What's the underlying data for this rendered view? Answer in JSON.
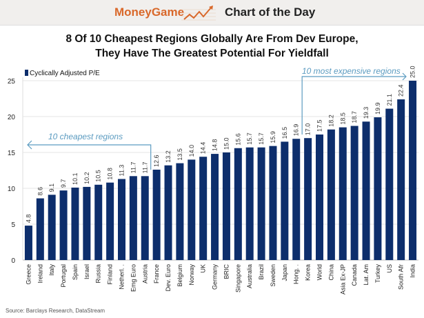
{
  "header": {
    "brand": "MoneyGame",
    "section": "Chart of the Day"
  },
  "source": "Source: Barclays Research, DataStream",
  "colors": {
    "bar": "#0d2e6c",
    "annotation": "#5b9bc0",
    "brand": "#d9682a"
  },
  "chart_data": {
    "type": "bar",
    "title_line1": "8 Of 10 Cheapest Regions Globally Are From Dev Europe,",
    "title_line2": "They Have The Greatest Potential For Yieldfall",
    "legend": "Cyclically Adjusted P/E",
    "ylim": [
      0,
      25
    ],
    "yticks": [
      "0",
      "5",
      "10",
      "15",
      "20",
      "25"
    ],
    "grid": true,
    "categories": [
      "Greece",
      "Ireland",
      "Italy",
      "Portugal",
      "Spain",
      "Israel",
      "Russia",
      "Finland",
      "Netherl. .",
      "Emg Euro",
      "Austria",
      "France",
      "Dev. Euro",
      "Belgium",
      "Norway",
      "UK",
      "Germany",
      "BRIC",
      "Singapore",
      "Australia",
      "Brazil",
      "Sweden",
      "Japan",
      "Hong. .",
      "Korea",
      "World",
      "China",
      "Asia Ex-JP",
      "Canada",
      "Lat. Am",
      "Turkey",
      "US",
      "South Afr",
      "India"
    ],
    "values": [
      4.8,
      8.6,
      9.1,
      9.7,
      10.1,
      10.2,
      10.5,
      10.8,
      11.3,
      11.7,
      11.7,
      12.6,
      13.2,
      13.5,
      14.0,
      14.4,
      14.8,
      15.0,
      15.6,
      15.7,
      15.7,
      15.9,
      16.5,
      16.9,
      17.0,
      17.5,
      18.2,
      18.5,
      18.7,
      19.3,
      19.9,
      21.1,
      22.4,
      25.0
    ],
    "annotations": [
      "10 cheapest regions",
      "10 most expensive regions"
    ]
  }
}
